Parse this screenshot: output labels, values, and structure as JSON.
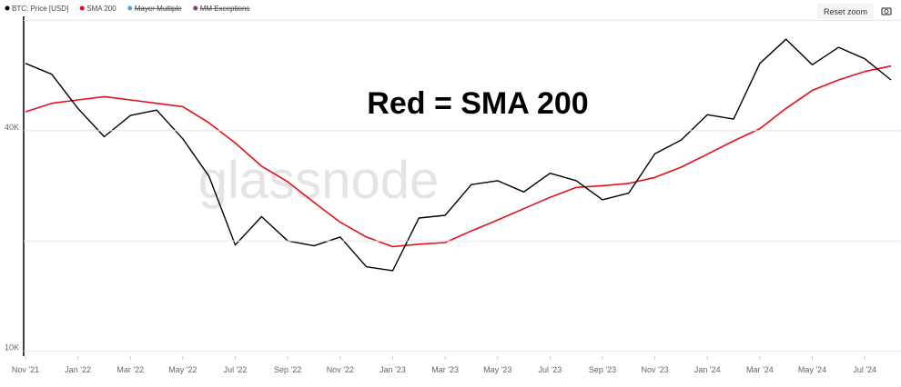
{
  "chart_data": {
    "type": "line",
    "annotation": "Red = SMA 200",
    "watermark": "glassnode",
    "reset_zoom_label": "Reset zoom",
    "log_scale": true,
    "grid": true,
    "x": [
      "2021-11",
      "2021-12",
      "2022-01",
      "2022-02",
      "2022-03",
      "2022-04",
      "2022-05",
      "2022-06",
      "2022-07",
      "2022-08",
      "2022-09",
      "2022-10",
      "2022-11",
      "2022-12",
      "2023-01",
      "2023-02",
      "2023-03",
      "2023-04",
      "2023-05",
      "2023-06",
      "2023-07",
      "2023-08",
      "2023-09",
      "2023-10",
      "2023-11",
      "2023-12",
      "2024-01",
      "2024-02",
      "2024-03",
      "2024-04",
      "2024-05",
      "2024-06",
      "2024-07",
      "2024-08"
    ],
    "xlim": [
      "2021-11",
      "2024-08"
    ],
    "xticks": [
      {
        "value": "2021-11",
        "label": "Nov '21"
      },
      {
        "value": "2022-01",
        "label": "Jan '22"
      },
      {
        "value": "2022-03",
        "label": "Mar '22"
      },
      {
        "value": "2022-05",
        "label": "May '22"
      },
      {
        "value": "2022-07",
        "label": "Jul '22"
      },
      {
        "value": "2022-09",
        "label": "Sep '22"
      },
      {
        "value": "2022-11",
        "label": "Nov '22"
      },
      {
        "value": "2023-01",
        "label": "Jan '23"
      },
      {
        "value": "2023-03",
        "label": "Mar '23"
      },
      {
        "value": "2023-05",
        "label": "May '23"
      },
      {
        "value": "2023-07",
        "label": "Jul '23"
      },
      {
        "value": "2023-09",
        "label": "Sep '23"
      },
      {
        "value": "2023-11",
        "label": "Nov '23"
      },
      {
        "value": "2024-01",
        "label": "Jan '24"
      },
      {
        "value": "2024-03",
        "label": "Mar '24"
      },
      {
        "value": "2024-05",
        "label": "May '24"
      },
      {
        "value": "2024-07",
        "label": "Jul '24"
      }
    ],
    "ylim": [
      9700,
      82000
    ],
    "yticks": [
      {
        "value": 10000,
        "label": "10K"
      },
      {
        "value": 20000,
        "label": null
      },
      {
        "value": 40000,
        "label": "40K"
      },
      {
        "value": 80000,
        "label": null
      }
    ],
    "series": [
      {
        "name": "BTC: Price [USD]",
        "color": "#000000",
        "values": [
          61000,
          57000,
          46000,
          38500,
          44000,
          45500,
          38000,
          30000,
          19500,
          23300,
          20000,
          19400,
          20500,
          17000,
          16600,
          23100,
          23500,
          28500,
          29200,
          27200,
          30600,
          29200,
          25900,
          27000,
          34600,
          37700,
          44200,
          43000,
          61000,
          71000,
          60500,
          67500,
          62800,
          55000
        ]
      },
      {
        "name": "SMA 200",
        "color": "#e3101a",
        "values": [
          45000,
          47500,
          48500,
          49500,
          48500,
          47500,
          46500,
          42000,
          37000,
          32000,
          29000,
          25500,
          22500,
          20500,
          19300,
          19600,
          19800,
          21300,
          22800,
          24500,
          26300,
          28000,
          28300,
          28700,
          29800,
          31800,
          34500,
          37500,
          40500,
          46000,
          51500,
          55000,
          58000,
          60000
        ]
      }
    ],
    "legend_hidden": [
      {
        "name": "Mayer Multiple",
        "color": "#4ea6dc"
      },
      {
        "name": "MM Exceptions",
        "color": "#8b3a7a"
      }
    ]
  }
}
